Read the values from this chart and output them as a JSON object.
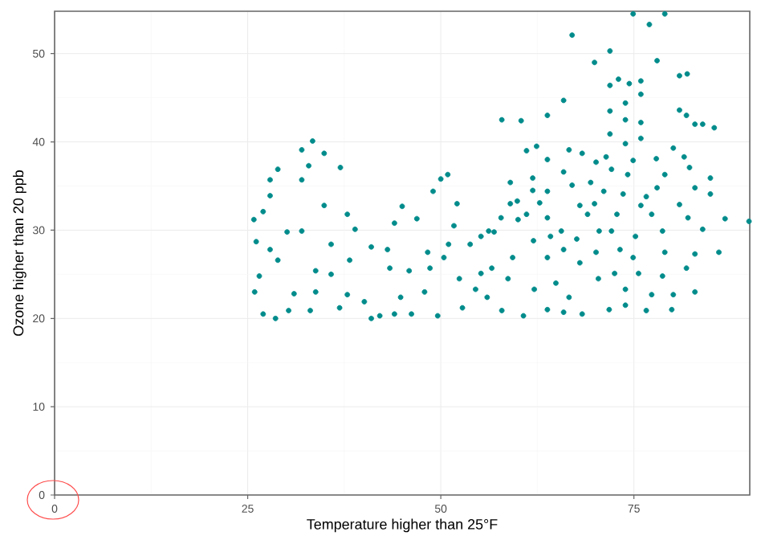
{
  "chart_data": {
    "type": "scatter",
    "xlabel": "Temperature higher than 25°F",
    "ylabel": "Ozone higher than 20 ppb",
    "color": "#008b8b",
    "marker": "circle",
    "grid": true,
    "xlim": [
      0,
      90
    ],
    "ylim": [
      0,
      54.8
    ],
    "xticks": [
      0,
      25,
      50,
      75
    ],
    "yticks": [
      0,
      10,
      20,
      30,
      40,
      50
    ],
    "x": [
      33.4,
      32.0,
      34.9,
      28.9,
      32.9,
      32.0,
      27.9,
      37.0,
      27.9,
      34.9,
      25.8,
      27.0,
      37.9,
      30.1,
      32.0,
      26.1,
      38.9,
      27.9,
      28.9,
      35.8,
      38.2,
      26.5,
      33.8,
      35.8,
      25.9,
      31.0,
      33.8,
      36.9,
      27.0,
      28.6,
      30.3,
      33.1,
      37.9,
      40.1,
      42.1,
      41.0,
      41.0,
      43.1,
      44.0,
      45.0,
      50.0,
      50.9,
      49.0,
      46.9,
      52.1,
      51.7,
      45.9,
      43.4,
      44.8,
      44.0,
      46.2,
      47.9,
      48.6,
      50.4,
      49.6,
      52.8,
      54.5,
      55.2,
      53.8,
      56.2,
      51.0,
      48.3,
      52.4,
      74.9,
      79.0,
      77.0,
      67.0,
      71.9,
      69.9,
      78.0,
      80.9,
      81.9,
      71.9,
      73.0,
      74.4,
      75.9,
      75.9,
      65.9,
      73.9,
      71.9,
      63.8,
      57.9,
      60.4,
      80.9,
      81.8,
      82.9,
      83.9,
      85.4,
      73.9,
      75.9,
      71.9,
      73.9,
      75.9,
      61.1,
      62.4,
      66.6,
      68.3,
      71.4,
      74.9,
      77.9,
      80.1,
      81.5,
      70.1,
      63.8,
      65.9,
      72.1,
      74.2,
      79.0,
      82.2,
      84.9,
      61.9,
      59.0,
      67.0,
      69.4,
      78.0,
      82.9,
      84.9,
      61.9,
      63.8,
      71.1,
      73.6,
      76.6,
      59.0,
      59.9,
      62.8,
      68.0,
      69.9,
      75.9,
      80.9,
      57.8,
      61.1,
      63.8,
      69.0,
      72.8,
      77.3,
      82.0,
      86.8,
      89.9,
      55.2,
      56.9,
      60.0,
      62.0,
      65.6,
      67.6,
      70.5,
      72.1,
      75.2,
      78.7,
      83.9,
      86.0,
      82.9,
      81.8,
      82.9,
      80.1,
      79.9,
      76.6,
      73.9,
      71.8,
      68.3,
      65.9,
      63.8,
      60.7,
      57.9,
      56.0,
      58.7,
      62.1,
      64.9,
      66.6,
      70.4,
      72.5,
      73.9,
      75.6,
      78.7,
      77.3,
      68.0,
      70.1,
      73.2,
      74.9,
      79.0,
      63.8,
      59.3,
      56.6,
      64.2,
      65.9
    ],
    "values": [
      40.1,
      39.1,
      38.7,
      36.9,
      37.3,
      35.7,
      35.7,
      37.1,
      33.9,
      32.8,
      31.2,
      32.1,
      31.8,
      29.8,
      29.9,
      28.7,
      30.1,
      27.8,
      26.6,
      28.4,
      26.6,
      24.8,
      25.4,
      25.0,
      23.0,
      22.8,
      23.0,
      21.2,
      20.5,
      20.0,
      20.9,
      20.9,
      22.7,
      21.9,
      20.3,
      20.0,
      28.1,
      27.8,
      30.8,
      32.7,
      35.8,
      36.3,
      34.4,
      31.3,
      33.0,
      30.5,
      25.4,
      25.7,
      22.4,
      20.5,
      20.5,
      23.0,
      25.7,
      26.9,
      20.3,
      21.2,
      23.3,
      25.1,
      28.4,
      29.9,
      28.4,
      27.5,
      24.5,
      54.5,
      54.5,
      53.3,
      52.1,
      50.3,
      49.0,
      49.2,
      47.5,
      47.7,
      46.4,
      47.1,
      46.6,
      46.9,
      45.4,
      44.7,
      44.4,
      43.5,
      43.0,
      42.5,
      42.4,
      43.6,
      43.0,
      42.0,
      42.0,
      41.6,
      42.5,
      42.2,
      40.9,
      39.8,
      40.4,
      39.0,
      39.5,
      39.1,
      38.7,
      38.3,
      37.9,
      38.1,
      39.3,
      38.3,
      37.7,
      38.0,
      36.6,
      36.9,
      36.3,
      36.3,
      37.1,
      35.9,
      35.9,
      35.4,
      35.1,
      35.4,
      34.8,
      34.8,
      34.1,
      34.5,
      34.4,
      34.4,
      34.1,
      33.8,
      33.0,
      33.3,
      33.1,
      32.8,
      33.0,
      32.8,
      32.9,
      31.4,
      31.8,
      31.4,
      31.8,
      31.8,
      31.8,
      31.4,
      31.3,
      31.0,
      29.3,
      29.8,
      31.2,
      28.8,
      29.9,
      29.0,
      29.9,
      29.9,
      29.3,
      29.9,
      30.1,
      27.5,
      27.3,
      25.7,
      23.0,
      22.7,
      21.0,
      20.9,
      21.5,
      21.0,
      20.5,
      20.7,
      21.0,
      20.3,
      20.9,
      22.4,
      24.5,
      23.3,
      24.0,
      22.4,
      24.5,
      25.1,
      23.3,
      25.1,
      24.8,
      22.7,
      26.3,
      27.5,
      27.8,
      26.9,
      27.5,
      26.9,
      26.9,
      25.7,
      29.3,
      27.8
    ]
  }
}
